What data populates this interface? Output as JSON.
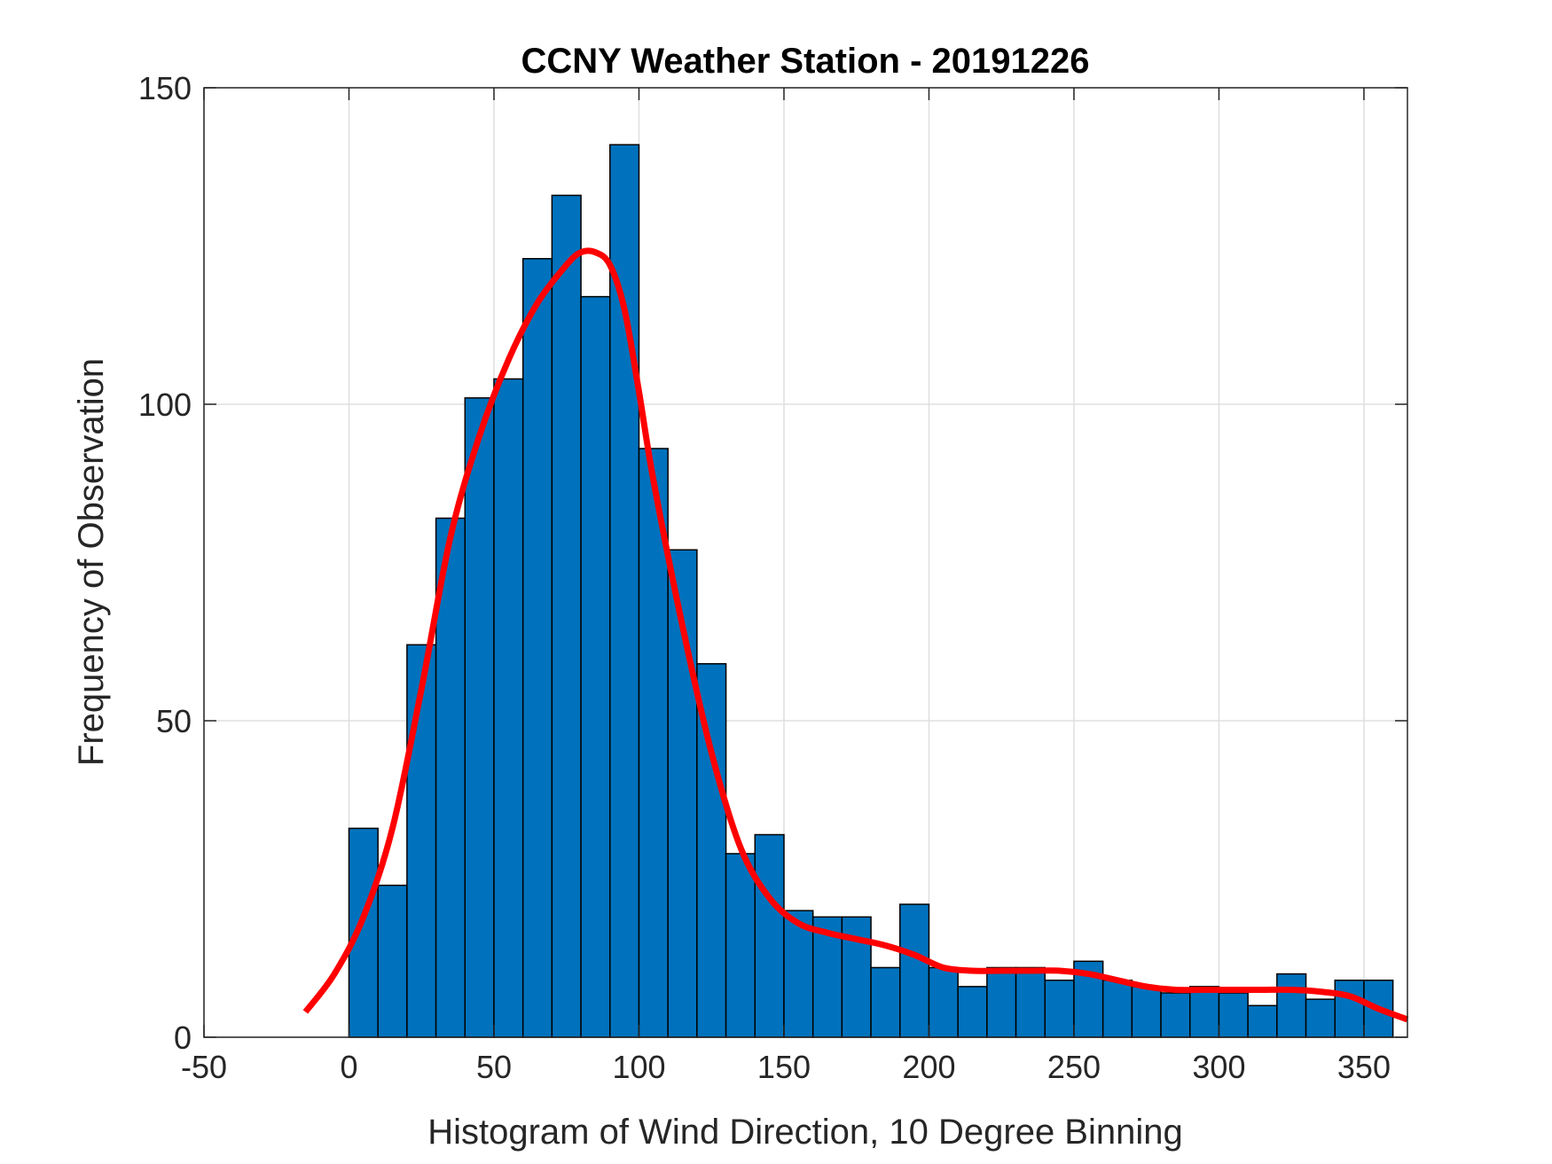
{
  "chart_data": {
    "type": "bar",
    "title": "CCNY Weather Station - 20191226",
    "xlabel": "Histogram of Wind Direction, 10 Degree Binning",
    "ylabel": "Frequency of Observation",
    "xlim": [
      -50,
      365
    ],
    "ylim": [
      0,
      150
    ],
    "xticks": [
      -50,
      0,
      50,
      100,
      150,
      200,
      250,
      300,
      350
    ],
    "yticks": [
      0,
      50,
      100,
      150
    ],
    "grid": true,
    "bin_width": 10,
    "bin_edges_start": [
      0,
      10,
      20,
      30,
      40,
      50,
      60,
      70,
      80,
      90,
      100,
      110,
      120,
      130,
      140,
      150,
      160,
      170,
      180,
      190,
      200,
      210,
      220,
      230,
      240,
      250,
      260,
      270,
      280,
      290,
      300,
      310,
      320,
      330,
      340,
      350
    ],
    "values": [
      33,
      24,
      62,
      82,
      101,
      104,
      123,
      133,
      117,
      141,
      93,
      77,
      59,
      29,
      32,
      20,
      19,
      19,
      11,
      21,
      11,
      8,
      11,
      11,
      9,
      12,
      9,
      8,
      7,
      8,
      7,
      5,
      10,
      6,
      9,
      9
    ],
    "bar_color": "#0072BD",
    "fit_curve": {
      "color": "#FF0000",
      "x": [
        -15,
        -5,
        5,
        15,
        25,
        35,
        45,
        55,
        65,
        75,
        80,
        85,
        90,
        95,
        100,
        105,
        115,
        125,
        135,
        145,
        155,
        165,
        175,
        185,
        195,
        205,
        215,
        225,
        235,
        245,
        255,
        265,
        275,
        285,
        295,
        305,
        315,
        325,
        335,
        345,
        355,
        365
      ],
      "y": [
        4,
        10,
        19,
        33,
        55,
        79,
        95,
        107,
        116,
        122,
        124,
        124,
        122,
        115,
        102,
        88,
        65,
        45,
        30,
        22,
        18,
        16.5,
        15.5,
        14.5,
        13,
        11,
        10.5,
        10.5,
        10.5,
        10.5,
        10,
        9,
        8,
        7.5,
        7.5,
        7.5,
        7.5,
        7.5,
        7.2,
        6.5,
        4.5,
        2.8
      ]
    }
  }
}
